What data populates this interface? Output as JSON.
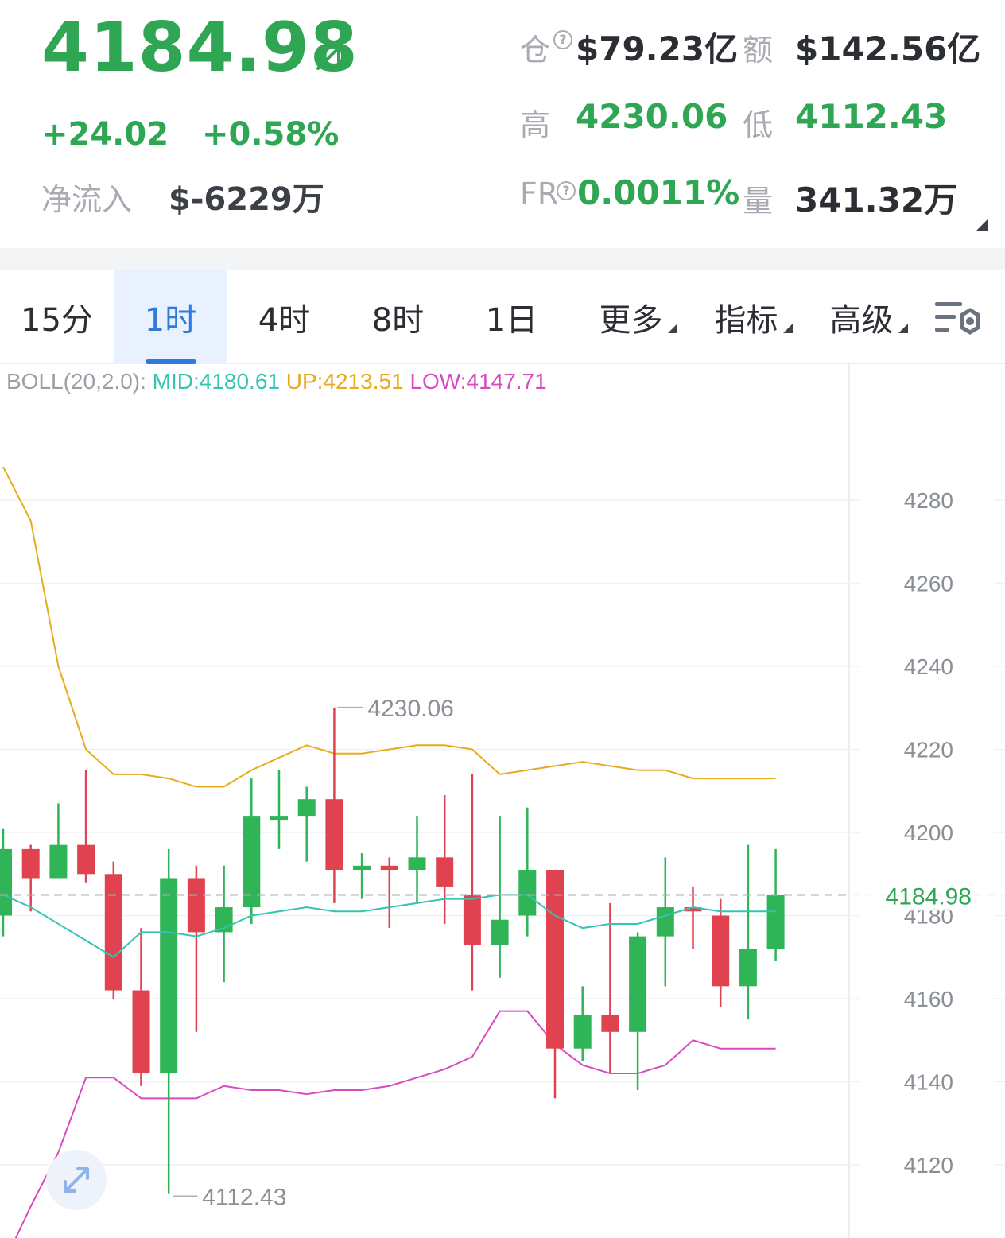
{
  "header": {
    "price": "4184.98",
    "change_abs": "+24.02",
    "change_pct": "+0.58%",
    "netflow_label": "净流入",
    "netflow_value": "$-6229万",
    "open_interest_label": "仓",
    "open_interest_value": "$79.23亿",
    "turnover_label": "额",
    "turnover_value": "$142.56亿",
    "high_label": "高",
    "high_value": "4230.06",
    "low_label": "低",
    "low_value": "4112.43",
    "fr_label": "FR",
    "fr_value": "0.0011%",
    "volume_label": "量",
    "volume_value": "341.32万",
    "help_glyph": "?"
  },
  "tabs": [
    {
      "label": "15分"
    },
    {
      "label": "1时",
      "active": true
    },
    {
      "label": "4时"
    },
    {
      "label": "8时"
    },
    {
      "label": "1日"
    },
    {
      "label": "更多"
    },
    {
      "label": "指标"
    },
    {
      "label": "高级"
    }
  ],
  "indicator": {
    "name": "BOLL(20,2.0):",
    "mid": "MID:4180.61",
    "up": "UP:4213.51",
    "low": "LOW:4147.71"
  },
  "colors": {
    "up": "#2fa653",
    "candle_up": "#2fb457",
    "candle_down": "#e0434f",
    "boll_mid": "#36c3b2",
    "boll_up": "#e6ab1e",
    "boll_low": "#d94ac1",
    "accent": "#2f7bdc"
  },
  "chart_data": {
    "type": "candlestick",
    "interval": "1时",
    "y_axis_ticks": [
      4280,
      4260,
      4240,
      4220,
      4200,
      4180,
      4160,
      4140,
      4120
    ],
    "ylim": [
      4105,
      4295
    ],
    "last_price": 4184.98,
    "last_price_label": "4184.98",
    "high_marker": {
      "value": 4230.06,
      "label": "4230.06"
    },
    "low_marker": {
      "value": 4112.43,
      "label": "4112.43"
    },
    "candles": [
      {
        "o": 4180,
        "h": 4201,
        "l": 4175,
        "c": 4196
      },
      {
        "o": 4196,
        "h": 4197,
        "l": 4181,
        "c": 4189
      },
      {
        "o": 4189,
        "h": 4207,
        "l": 4189,
        "c": 4197
      },
      {
        "o": 4197,
        "h": 4215,
        "l": 4188,
        "c": 4190
      },
      {
        "o": 4190,
        "h": 4193,
        "l": 4160,
        "c": 4162
      },
      {
        "o": 4162,
        "h": 4177,
        "l": 4139,
        "c": 4142
      },
      {
        "o": 4142,
        "h": 4196,
        "l": 4113,
        "c": 4189
      },
      {
        "o": 4189,
        "h": 4192,
        "l": 4152,
        "c": 4176
      },
      {
        "o": 4176,
        "h": 4192,
        "l": 4164,
        "c": 4182
      },
      {
        "o": 4182,
        "h": 4213,
        "l": 4178,
        "c": 4204
      },
      {
        "o": 4204,
        "h": 4215,
        "l": 4196,
        "c": 4204
      },
      {
        "o": 4204,
        "h": 4211,
        "l": 4193,
        "c": 4208
      },
      {
        "o": 4208,
        "h": 4230.06,
        "l": 4183,
        "c": 4191
      },
      {
        "o": 4191,
        "h": 4195,
        "l": 4184,
        "c": 4192
      },
      {
        "o": 4192,
        "h": 4194,
        "l": 4177,
        "c": 4191
      },
      {
        "o": 4191,
        "h": 4204,
        "l": 4183,
        "c": 4194
      },
      {
        "o": 4194,
        "h": 4209,
        "l": 4178,
        "c": 4187
      },
      {
        "o": 4185,
        "h": 4214,
        "l": 4162,
        "c": 4173
      },
      {
        "o": 4173,
        "h": 4204,
        "l": 4165,
        "c": 4179
      },
      {
        "o": 4180,
        "h": 4206,
        "l": 4175,
        "c": 4191
      },
      {
        "o": 4191,
        "h": 4191,
        "l": 4136,
        "c": 4148
      },
      {
        "o": 4148,
        "h": 4163,
        "l": 4145,
        "c": 4156
      },
      {
        "o": 4156,
        "h": 4183,
        "l": 4142,
        "c": 4152
      },
      {
        "o": 4152,
        "h": 4176,
        "l": 4138,
        "c": 4175
      },
      {
        "o": 4175,
        "h": 4194,
        "l": 4163,
        "c": 4182
      },
      {
        "o": 4182,
        "h": 4187,
        "l": 4172,
        "c": 4181
      },
      {
        "o": 4180,
        "h": 4184,
        "l": 4158,
        "c": 4163
      },
      {
        "o": 4163,
        "h": 4197,
        "l": 4155,
        "c": 4172
      },
      {
        "o": 4172,
        "h": 4196,
        "l": 4169,
        "c": 4185
      }
    ],
    "boll_mid": [
      4185,
      4182,
      4178,
      4174,
      4170,
      4176,
      4176,
      4175,
      4177,
      4180,
      4181,
      4182,
      4181,
      4181,
      4182,
      4183,
      4184,
      4184,
      4185,
      4185,
      4180,
      4177,
      4178,
      4178,
      4180,
      4182,
      4181,
      4181,
      4181
    ],
    "boll_up": [
      4288,
      4275,
      4240,
      4220,
      4214,
      4214,
      4213,
      4211,
      4211,
      4215,
      4218,
      4221,
      4219,
      4219,
      4220,
      4221,
      4221,
      4220,
      4214,
      4215,
      4216,
      4217,
      4216,
      4215,
      4215,
      4213,
      4213,
      4213,
      4213
    ],
    "boll_low": [
      4096,
      4110,
      4123,
      4141,
      4141,
      4136,
      4136,
      4136,
      4139,
      4138,
      4138,
      4137,
      4138,
      4138,
      4139,
      4141,
      4143,
      4146,
      4157,
      4157,
      4149,
      4144,
      4142,
      4142,
      4144,
      4150,
      4148,
      4148,
      4148
    ]
  }
}
